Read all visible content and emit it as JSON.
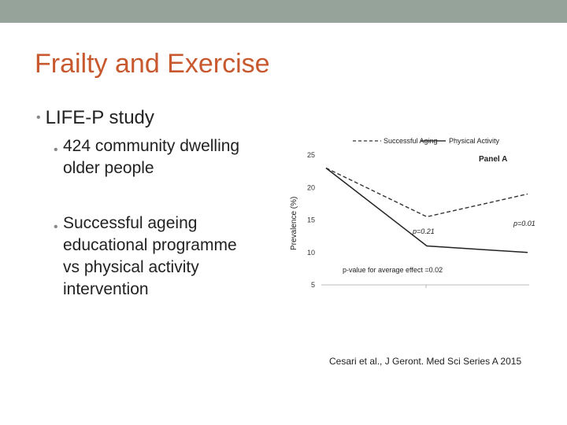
{
  "slide": {
    "title": "Frailty and Exercise",
    "bullet_main": "LIFE-P study",
    "bullet_sub1_line1": "424 community dwelling",
    "bullet_sub1_line2": "older people",
    "bullet_sub2_line1": "Successful ageing",
    "bullet_sub2_line2": "educational programme",
    "bullet_sub2_line3": "vs physical activity",
    "bullet_sub2_line4": "intervention",
    "citation": "Cesari et al., J Geront. Med Sci Series A 2015"
  },
  "colors": {
    "title": "#c8582d",
    "band": "#95a39a"
  },
  "chart_data": {
    "type": "line",
    "panel_label": "Panel A",
    "ylabel": "Prevalence (%)",
    "ylim": [
      5,
      25
    ],
    "yticks": [
      5,
      10,
      15,
      20,
      25
    ],
    "x": [
      0,
      1,
      2
    ],
    "series": [
      {
        "name": "Successful Aging",
        "style": "dashed",
        "values": [
          23,
          15.5,
          19
        ]
      },
      {
        "name": "Physical Activity",
        "style": "solid",
        "values": [
          23,
          11,
          10
        ]
      }
    ],
    "annotations": [
      "p=0.21",
      "p=0.01",
      "p-value for average effect =0.02"
    ],
    "legend_position": "top"
  }
}
